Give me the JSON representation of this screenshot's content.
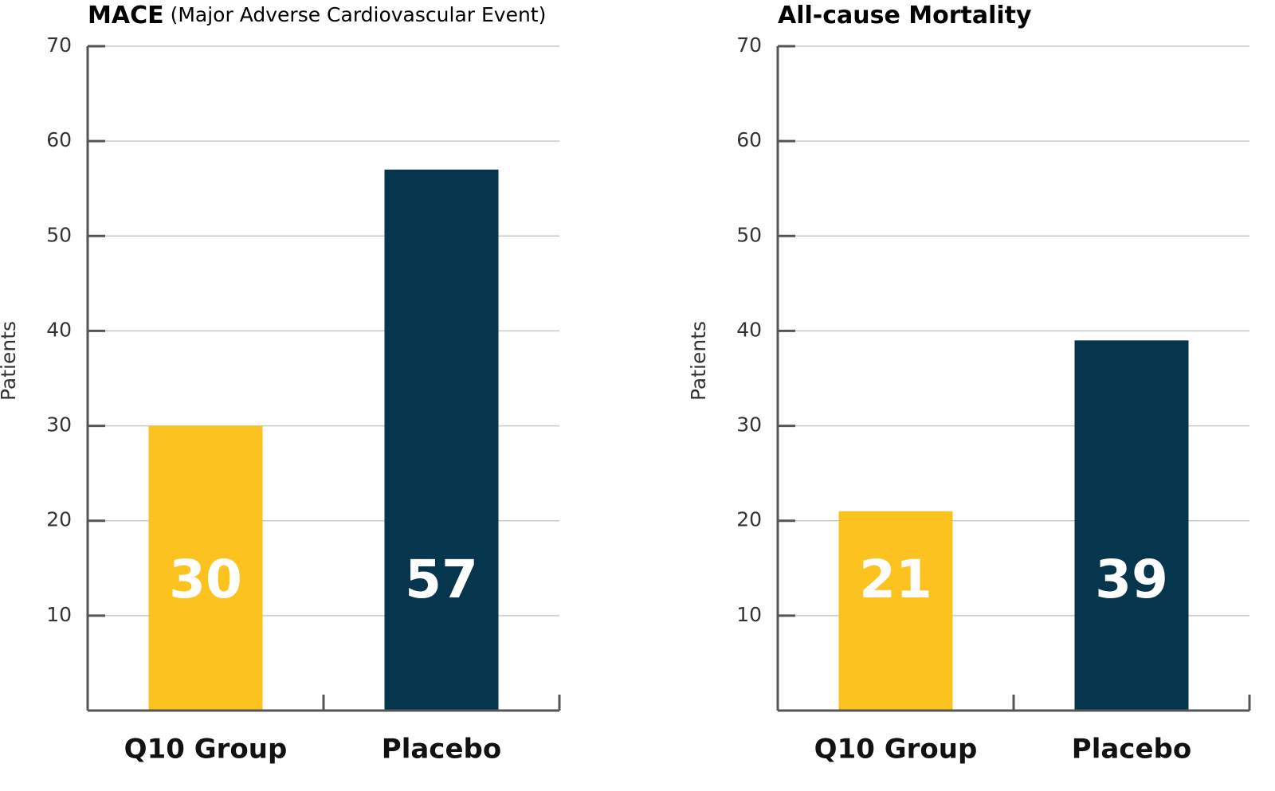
{
  "chart_data": [
    {
      "type": "bar",
      "title": "MACE",
      "subtitle": "(Major Adverse Cardiovascular Event)",
      "y_label": "Patients",
      "categories": [
        "Q10 Group",
        "Placebo"
      ],
      "values": [
        30,
        57
      ],
      "colors": [
        "#fcc220",
        "#06354e"
      ],
      "ylim": [
        0,
        70
      ],
      "yticks": [
        10,
        20,
        30,
        40,
        50,
        60,
        70
      ],
      "grid": true
    },
    {
      "type": "bar",
      "title": "All-cause Mortality",
      "y_label": "Patients",
      "categories": [
        "Q10 Group",
        "Placebo"
      ],
      "values": [
        21,
        39
      ],
      "colors": [
        "#fcc220",
        "#06354e"
      ],
      "ylim": [
        0,
        70
      ],
      "yticks": [
        10,
        20,
        30,
        40,
        50,
        60,
        70
      ],
      "grid": true
    }
  ]
}
